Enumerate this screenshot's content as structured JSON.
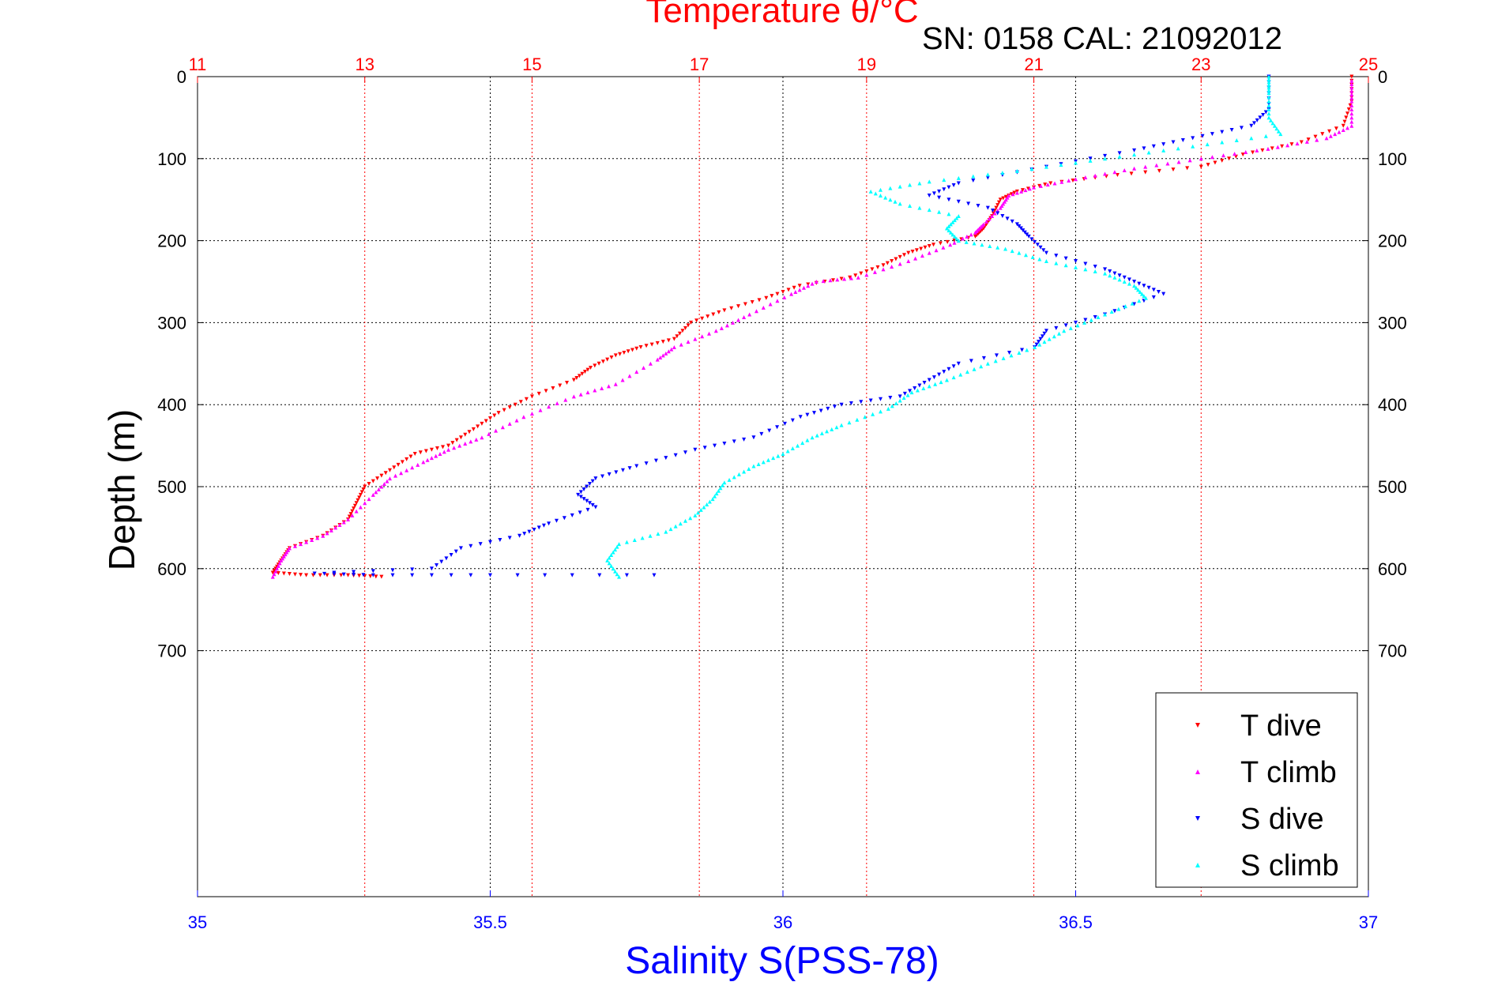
{
  "chart_data": {
    "type": "scatter",
    "title": "Temperature θ/°C",
    "annotation": "SN: 0158  CAL: 21092012",
    "ylabel": "Depth (m)",
    "xlabel": "Salinity S(PSS-78)",
    "ylim": [
      0,
      1000
    ],
    "y_ticks": [
      0,
      100,
      200,
      300,
      400,
      500,
      600,
      700
    ],
    "temperature_axis": {
      "lim": [
        11,
        25
      ],
      "ticks": [
        11,
        13,
        15,
        17,
        19,
        21,
        23,
        25
      ],
      "color": "#ff0000",
      "position": "top"
    },
    "salinity_axis": {
      "lim": [
        35,
        37
      ],
      "ticks": [
        "35",
        "35.5",
        "36",
        "36.5",
        "37"
      ],
      "tick_values": [
        35,
        35.5,
        36,
        36.5,
        37
      ],
      "color": "#0000ff",
      "position": "bottom"
    },
    "grid": true,
    "legend_position": "bottom-right",
    "series": [
      {
        "name": "T dive",
        "axis": "temperature",
        "color": "#ff0000",
        "marker": "triangle-down",
        "points": [
          [
            24.8,
            0
          ],
          [
            24.8,
            30
          ],
          [
            24.7,
            60
          ],
          [
            24.2,
            80
          ],
          [
            23.5,
            95
          ],
          [
            23,
            110
          ],
          [
            22,
            120
          ],
          [
            21.2,
            130
          ],
          [
            20.8,
            140
          ],
          [
            20.6,
            150
          ],
          [
            20.5,
            170
          ],
          [
            20.4,
            185
          ],
          [
            20.3,
            195
          ],
          [
            19.8,
            205
          ],
          [
            19.5,
            215
          ],
          [
            19.2,
            230
          ],
          [
            18.8,
            245
          ],
          [
            18.2,
            255
          ],
          [
            17.8,
            270
          ],
          [
            17.3,
            285
          ],
          [
            16.9,
            300
          ],
          [
            16.7,
            320
          ],
          [
            16.3,
            330
          ],
          [
            16.0,
            340
          ],
          [
            15.7,
            355
          ],
          [
            15.5,
            370
          ],
          [
            15.0,
            390
          ],
          [
            14.6,
            410
          ],
          [
            14.3,
            430
          ],
          [
            14.0,
            450
          ],
          [
            13.6,
            460
          ],
          [
            13.3,
            480
          ],
          [
            13.0,
            500
          ],
          [
            12.9,
            520
          ],
          [
            12.8,
            540
          ],
          [
            12.5,
            560
          ],
          [
            12.1,
            575
          ],
          [
            12.0,
            590
          ],
          [
            11.9,
            605
          ],
          [
            12.3,
            608
          ],
          [
            12.8,
            608
          ],
          [
            13.2,
            610
          ]
        ]
      },
      {
        "name": "T climb",
        "axis": "temperature",
        "color": "#ff00ff",
        "marker": "triangle-up",
        "points": [
          [
            11.9,
            610
          ],
          [
            12.0,
            590
          ],
          [
            12.1,
            575
          ],
          [
            12.5,
            560
          ],
          [
            12.8,
            540
          ],
          [
            13.1,
            510
          ],
          [
            13.3,
            490
          ],
          [
            13.7,
            470
          ],
          [
            14.0,
            455
          ],
          [
            14.4,
            440
          ],
          [
            14.9,
            415
          ],
          [
            15.5,
            390
          ],
          [
            16.0,
            375
          ],
          [
            16.5,
            345
          ],
          [
            16.7,
            330
          ],
          [
            17.2,
            310
          ],
          [
            17.6,
            290
          ],
          [
            18.1,
            265
          ],
          [
            18.4,
            250
          ],
          [
            18.9,
            245
          ],
          [
            19.5,
            225
          ],
          [
            20.0,
            205
          ],
          [
            20.3,
            190
          ],
          [
            20.4,
            180
          ],
          [
            20.6,
            160
          ],
          [
            20.7,
            145
          ],
          [
            21.0,
            135
          ],
          [
            21.5,
            125
          ],
          [
            22.2,
            112
          ],
          [
            23.0,
            100
          ],
          [
            23.8,
            88
          ],
          [
            24.5,
            75
          ],
          [
            24.8,
            60
          ],
          [
            24.8,
            30
          ],
          [
            24.8,
            5
          ]
        ]
      },
      {
        "name": "S dive",
        "axis": "salinity",
        "color": "#0000ff",
        "marker": "triangle-down",
        "points": [
          [
            36.83,
            0
          ],
          [
            36.83,
            40
          ],
          [
            36.8,
            60
          ],
          [
            36.7,
            75
          ],
          [
            36.6,
            90
          ],
          [
            36.45,
            110
          ],
          [
            36.3,
            130
          ],
          [
            36.25,
            145
          ],
          [
            36.35,
            160
          ],
          [
            36.4,
            180
          ],
          [
            36.42,
            195
          ],
          [
            36.45,
            215
          ],
          [
            36.55,
            235
          ],
          [
            36.6,
            250
          ],
          [
            36.65,
            265
          ],
          [
            36.55,
            290
          ],
          [
            36.45,
            310
          ],
          [
            36.43,
            330
          ],
          [
            36.3,
            350
          ],
          [
            36.25,
            370
          ],
          [
            36.2,
            390
          ],
          [
            36.1,
            400
          ],
          [
            36.03,
            415
          ],
          [
            35.95,
            440
          ],
          [
            35.85,
            455
          ],
          [
            35.75,
            475
          ],
          [
            35.68,
            490
          ],
          [
            35.65,
            510
          ],
          [
            35.68,
            525
          ],
          [
            35.6,
            545
          ],
          [
            35.55,
            560
          ],
          [
            35.45,
            575
          ],
          [
            35.4,
            600
          ],
          [
            35.2,
            606
          ],
          [
            35.3,
            608
          ],
          [
            35.5,
            608
          ],
          [
            35.78,
            608
          ]
        ]
      },
      {
        "name": "S climb",
        "axis": "salinity",
        "color": "#00ffff",
        "marker": "triangle-up",
        "points": [
          [
            35.72,
            610
          ],
          [
            35.7,
            590
          ],
          [
            35.72,
            570
          ],
          [
            35.8,
            555
          ],
          [
            35.85,
            535
          ],
          [
            35.88,
            515
          ],
          [
            35.9,
            495
          ],
          [
            35.95,
            475
          ],
          [
            36.0,
            460
          ],
          [
            36.05,
            440
          ],
          [
            36.1,
            425
          ],
          [
            36.18,
            405
          ],
          [
            36.22,
            385
          ],
          [
            36.28,
            370
          ],
          [
            36.35,
            350
          ],
          [
            36.43,
            330
          ],
          [
            36.48,
            310
          ],
          [
            36.55,
            290
          ],
          [
            36.62,
            270
          ],
          [
            36.6,
            255
          ],
          [
            36.55,
            240
          ],
          [
            36.45,
            225
          ],
          [
            36.38,
            210
          ],
          [
            36.3,
            200
          ],
          [
            36.28,
            185
          ],
          [
            36.3,
            170
          ],
          [
            36.2,
            155
          ],
          [
            36.15,
            140
          ],
          [
            36.25,
            128
          ],
          [
            36.4,
            115
          ],
          [
            36.55,
            100
          ],
          [
            36.7,
            85
          ],
          [
            36.85,
            70
          ],
          [
            36.83,
            50
          ],
          [
            36.83,
            20
          ],
          [
            36.83,
            0
          ]
        ]
      }
    ]
  }
}
